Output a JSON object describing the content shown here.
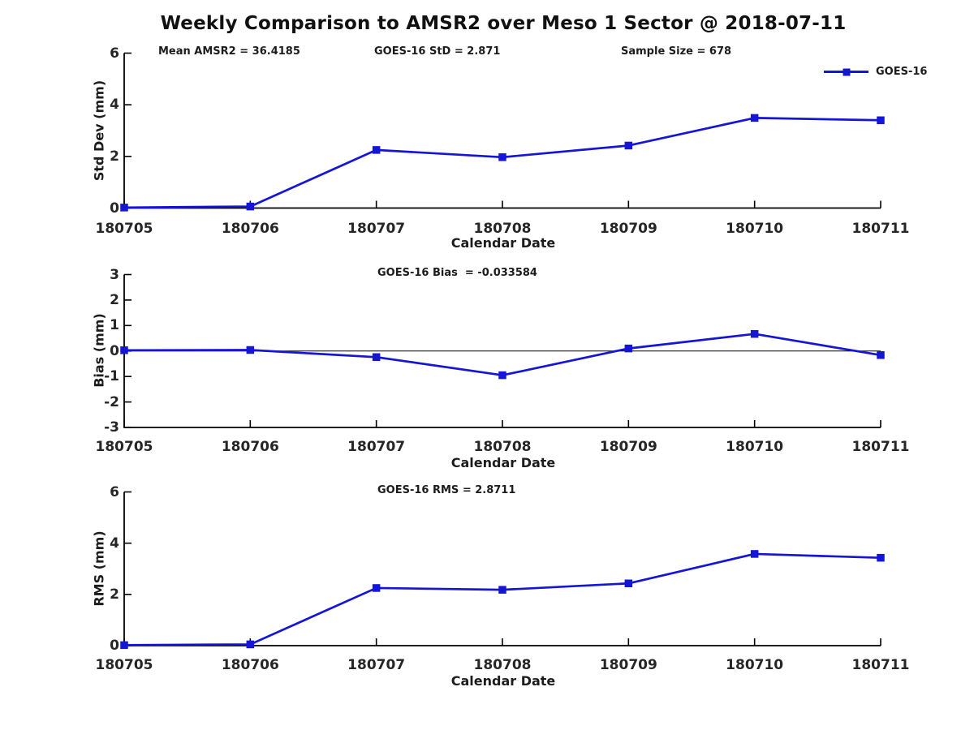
{
  "page_title": "Weekly Comparison to AMSR2 over Meso 1 Sector @ 2018-07-11",
  "legend": {
    "label": "GOES-16",
    "position": "top-right"
  },
  "colors": {
    "line": "#1515d6",
    "axis": "#000000",
    "text": "#1c1c1c"
  },
  "chart_data": [
    {
      "type": "line",
      "categories": [
        "180705",
        "180706",
        "180707",
        "180708",
        "180709",
        "180710",
        "180711"
      ],
      "series": [
        {
          "name": "GOES-16",
          "values": [
            0.02,
            0.06,
            2.25,
            1.97,
            2.42,
            3.49,
            3.4
          ]
        }
      ],
      "annotations": [
        "Mean AMSR2 = 36.4185",
        "GOES-16 StD = 2.871",
        "Sample Size = 678"
      ],
      "xlabel": "Calendar Date",
      "ylabel": "Std Dev (mm)",
      "ylim": [
        0,
        6
      ],
      "yticks": [
        0,
        2,
        4,
        6
      ],
      "grid": false,
      "zero_line": false,
      "marker": "square",
      "legend": true
    },
    {
      "type": "line",
      "categories": [
        "180705",
        "180706",
        "180707",
        "180708",
        "180709",
        "180710",
        "180711"
      ],
      "series": [
        {
          "name": "GOES-16",
          "values": [
            0.03,
            0.04,
            -0.24,
            -0.95,
            0.1,
            0.67,
            -0.16
          ]
        }
      ],
      "annotations": [
        "GOES-16 Bias  = -0.033584"
      ],
      "xlabel": "Calendar Date",
      "ylabel": "Bias (mm)",
      "ylim": [
        -3,
        3
      ],
      "yticks": [
        -3,
        -2,
        -1,
        0,
        1,
        2,
        3
      ],
      "grid": false,
      "zero_line": true,
      "marker": "square",
      "legend": false
    },
    {
      "type": "line",
      "categories": [
        "180705",
        "180706",
        "180707",
        "180708",
        "180709",
        "180710",
        "180711"
      ],
      "series": [
        {
          "name": "GOES-16",
          "values": [
            0.02,
            0.05,
            2.25,
            2.18,
            2.43,
            3.58,
            3.43
          ]
        }
      ],
      "annotations": [
        "GOES-16 RMS = 2.8711"
      ],
      "xlabel": "Calendar Date",
      "ylabel": "RMS (mm)",
      "ylim": [
        0,
        6
      ],
      "yticks": [
        0,
        2,
        4,
        6
      ],
      "grid": false,
      "zero_line": false,
      "marker": "square",
      "legend": false
    }
  ]
}
